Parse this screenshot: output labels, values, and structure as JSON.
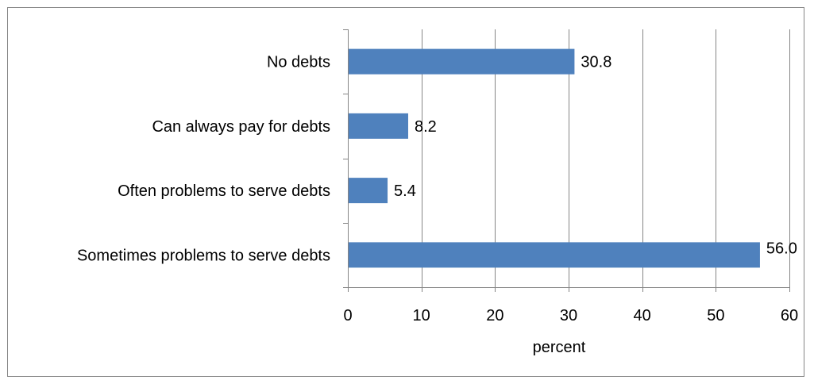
{
  "chart_data": {
    "type": "bar",
    "orientation": "horizontal",
    "categories": [
      "No debts",
      "Can always pay for debts",
      "Often problems to serve debts",
      "Sometimes problems to serve debts"
    ],
    "values": [
      30.8,
      8.2,
      5.4,
      56.0
    ],
    "data_labels": [
      "30.8",
      "8.2",
      "5.4",
      "56.0"
    ],
    "title": "",
    "xlabel": "percent",
    "ylabel": "",
    "xlim": [
      0,
      60
    ],
    "x_ticks": [
      0,
      10,
      20,
      30,
      40,
      50,
      60
    ],
    "grid": "vertical",
    "legend": "none",
    "bar_color": "#4f81bd"
  }
}
